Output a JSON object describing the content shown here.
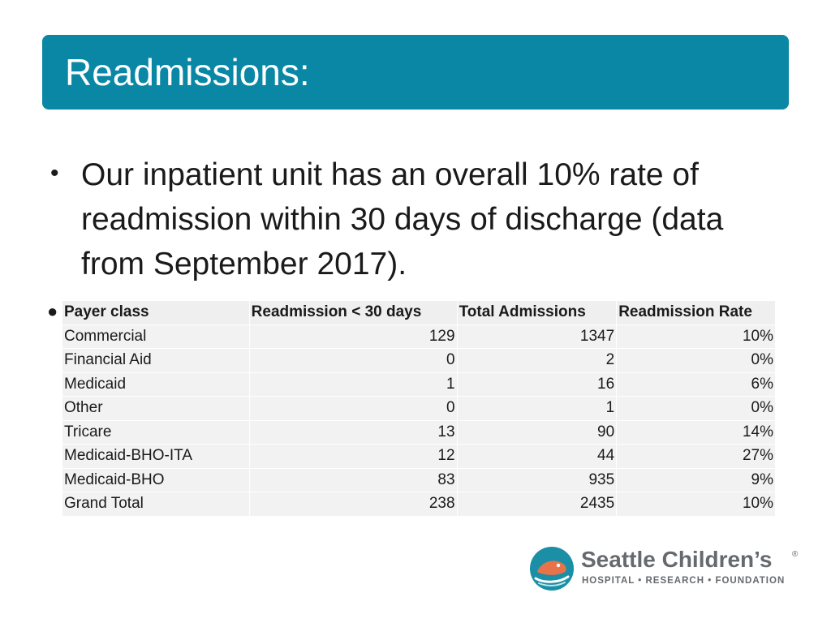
{
  "slide": {
    "title": "Readmissions:",
    "bullet_text": "Our inpatient unit has an overall 10% rate of readmission within 30 days of discharge (data from September 2017)."
  },
  "table": {
    "headers": [
      "Payer class",
      "Readmission < 30 days",
      "Total Admissions",
      "Readmission Rate"
    ],
    "rows": [
      [
        "Commercial",
        "129",
        "1347",
        "10%"
      ],
      [
        "Financial Aid",
        "0",
        "2",
        "0%"
      ],
      [
        "Medicaid",
        "1",
        "16",
        "6%"
      ],
      [
        "Other",
        "0",
        "1",
        "0%"
      ],
      [
        "Tricare",
        "13",
        "90",
        "14%"
      ],
      [
        "Medicaid-BHO-ITA",
        "12",
        "44",
        "27%"
      ],
      [
        "Medicaid-BHO",
        "83",
        "935",
        "9%"
      ],
      [
        "Grand Total",
        "238",
        "2435",
        "10%"
      ]
    ]
  },
  "logo": {
    "name": "Seattle Children’s",
    "registered": "®",
    "tagline": "HOSPITAL • RESEARCH • FOUNDATION",
    "icon": "seattle-childrens-whale-logo"
  },
  "colors": {
    "title_bar": "#0a87a5",
    "logo_teal": "#1a8fa6",
    "logo_orange": "#e8734a",
    "logo_gray": "#666a6e"
  }
}
